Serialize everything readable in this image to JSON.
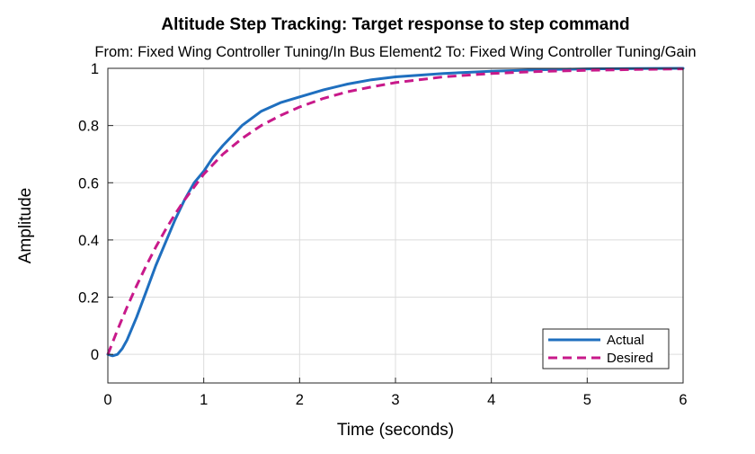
{
  "chart_data": {
    "type": "line",
    "title": "Altitude Step Tracking: Target response to step command",
    "subtitle": "From: Fixed Wing Controller Tuning/In Bus Element2  To: Fixed Wing Controller Tuning/Gain",
    "xlabel": "Time (seconds)",
    "ylabel": "Amplitude",
    "xlim": [
      0,
      6
    ],
    "ylim": [
      -0.1,
      1
    ],
    "xticks": [
      "0",
      "1",
      "2",
      "3",
      "4",
      "5",
      "6"
    ],
    "yticks": [
      "0",
      "0.2",
      "0.4",
      "0.6",
      "0.8",
      "1"
    ],
    "grid": true,
    "legend_position": "bottom-right",
    "reference_line": 1,
    "series": [
      {
        "name": "Actual",
        "color": "#1f6fbf",
        "style": "solid",
        "x": [
          0,
          0.05,
          0.1,
          0.15,
          0.2,
          0.3,
          0.4,
          0.5,
          0.6,
          0.7,
          0.8,
          0.9,
          1.0,
          1.1,
          1.2,
          1.4,
          1.6,
          1.8,
          2.0,
          2.25,
          2.5,
          2.75,
          3.0,
          3.5,
          4.0,
          4.5,
          5.0,
          5.5,
          6.0
        ],
        "y": [
          0,
          -0.005,
          0.0,
          0.02,
          0.05,
          0.13,
          0.22,
          0.31,
          0.39,
          0.47,
          0.54,
          0.6,
          0.64,
          0.69,
          0.73,
          0.8,
          0.85,
          0.88,
          0.9,
          0.925,
          0.945,
          0.96,
          0.97,
          0.982,
          0.99,
          0.995,
          0.998,
          0.999,
          1.0
        ]
      },
      {
        "name": "Desired",
        "color": "#c8198a",
        "style": "dashed",
        "x": [
          0,
          0.1,
          0.2,
          0.3,
          0.4,
          0.5,
          0.6,
          0.7,
          0.8,
          0.9,
          1.0,
          1.2,
          1.4,
          1.6,
          1.8,
          2.0,
          2.25,
          2.5,
          2.75,
          3.0,
          3.5,
          4.0,
          4.5,
          5.0,
          5.5,
          6.0
        ],
        "y": [
          0,
          0.085,
          0.165,
          0.24,
          0.31,
          0.375,
          0.435,
          0.49,
          0.54,
          0.585,
          0.63,
          0.7,
          0.755,
          0.8,
          0.835,
          0.865,
          0.895,
          0.918,
          0.935,
          0.95,
          0.97,
          0.982,
          0.989,
          0.993,
          0.996,
          0.998
        ]
      }
    ]
  }
}
